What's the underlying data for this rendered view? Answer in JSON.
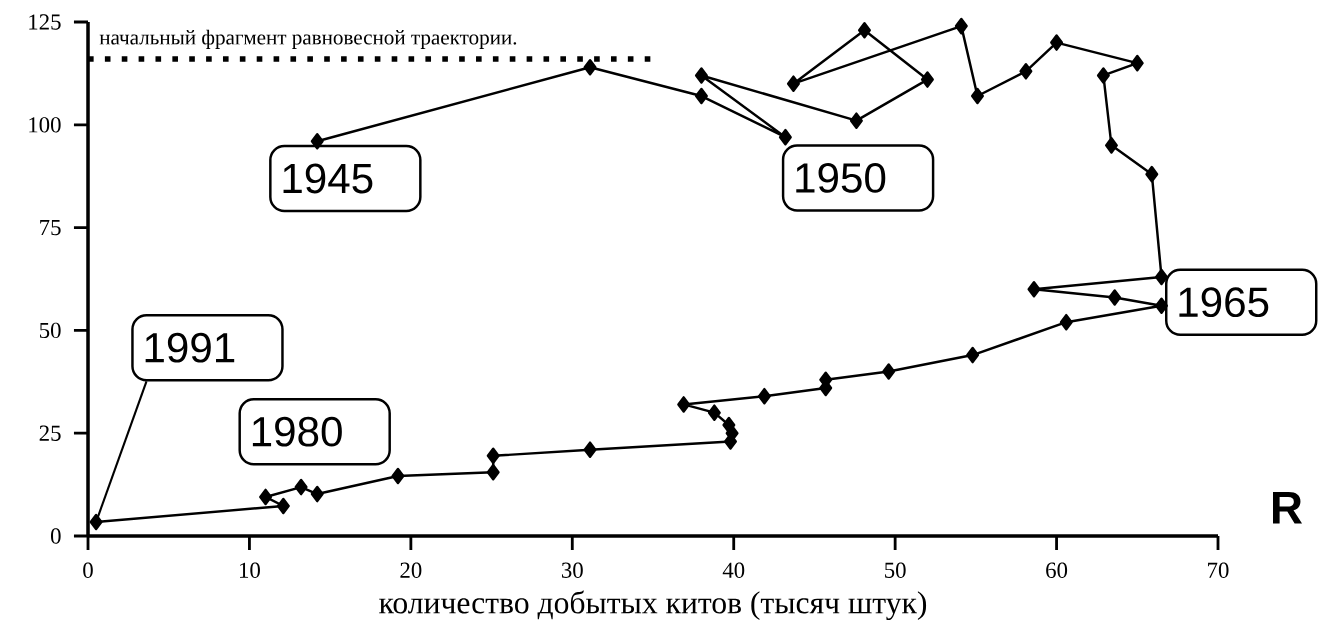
{
  "chart_data": {
    "type": "line",
    "xlabel": "количество добытых китов (тысяч штук)",
    "xlim": [
      0,
      70
    ],
    "xticks": [
      0,
      10,
      20,
      30,
      40,
      50,
      60,
      70
    ],
    "ylim": [
      0,
      125
    ],
    "yticks": [
      0,
      25,
      50,
      75,
      100,
      125
    ],
    "grid": false,
    "legend": "top left",
    "marker": "diamond",
    "line_style": "solid",
    "series": [
      {
        "color": "#000000",
        "x": [
          14.2,
          31.1,
          38.0,
          43.2,
          38.0,
          47.6,
          52.0,
          48.1,
          43.7,
          54.1,
          55.1,
          58.1,
          60.0,
          65.0,
          62.9,
          63.4,
          65.9,
          66.5,
          58.6,
          63.6,
          66.5,
          60.6,
          54.8,
          49.6,
          45.7,
          45.7,
          41.9,
          36.9,
          38.8,
          39.7,
          39.9,
          39.8,
          31.1,
          25.1,
          25.1,
          19.2,
          14.2,
          13.2,
          11.0,
          12.1,
          0.5
        ],
        "values": [
          96,
          114,
          107,
          97,
          112,
          101,
          111,
          123,
          110,
          124,
          107,
          113,
          120,
          115,
          112,
          95,
          88,
          63,
          60,
          58,
          56,
          52,
          44,
          40,
          38,
          36,
          34,
          32,
          30,
          27,
          25,
          23,
          21,
          19.5,
          15.5,
          14.6,
          10.2,
          11.9,
          9.5,
          7.3,
          3.4
        ]
      }
    ],
    "ref_lines": [
      {
        "axis": "y",
        "value": 116,
        "label": "начальный фрагмент равновесной траектории.",
        "line_style": "dotted",
        "color": "#000000"
      }
    ],
    "annotations": [
      "R",
      {
        "text": "1945",
        "x": 14.2,
        "y": 96
      },
      {
        "text": "1950",
        "x": 43.2,
        "y": 97
      },
      {
        "text": "1965",
        "x": 66.5,
        "y": 56
      },
      {
        "text": "1980",
        "x": 19.2,
        "y": 14.6
      },
      {
        "text": "1991",
        "x": 0.5,
        "y": 3.4
      }
    ]
  }
}
